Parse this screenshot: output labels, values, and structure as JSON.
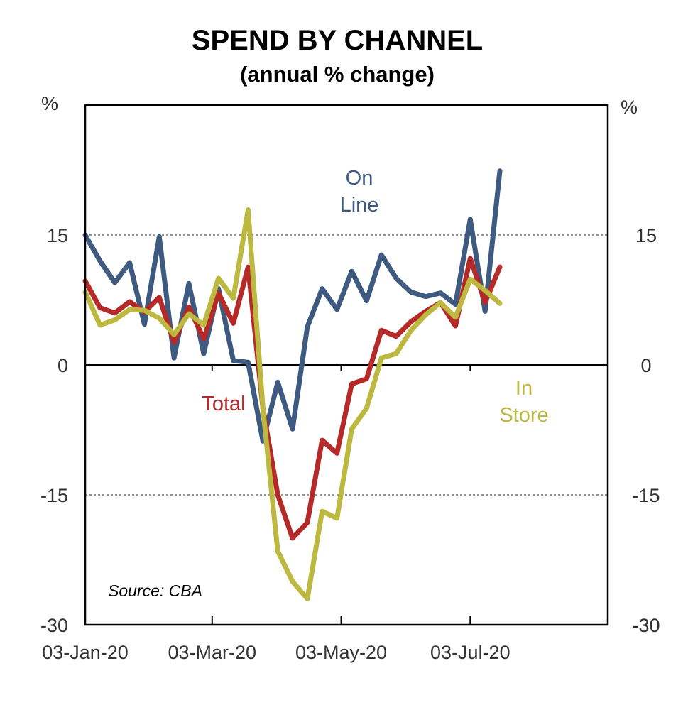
{
  "chart_data": {
    "type": "line",
    "title": "SPEND BY CHANNEL",
    "subtitle": "(annual % change)",
    "ylabel_left": "%",
    "ylabel_right": "%",
    "ylim": [
      -30,
      30
    ],
    "yticks": [
      15,
      0,
      -15,
      -30
    ],
    "ytick_labels": [
      "15",
      "0",
      "-15",
      "-30"
    ],
    "x_start": "03-Jan-20",
    "x_end": "06-Sep-20",
    "xticks": [
      "03-Jan-20",
      "03-Mar-20",
      "03-May-20",
      "03-Jul-20"
    ],
    "grid": "horizontal dotted at ±15",
    "source": "Source: CBA",
    "x": [
      "03-Jan-20",
      "10-Jan-20",
      "17-Jan-20",
      "24-Jan-20",
      "31-Jan-20",
      "07-Feb-20",
      "14-Feb-20",
      "21-Feb-20",
      "28-Feb-20",
      "06-Mar-20",
      "13-Mar-20",
      "20-Mar-20",
      "27-Mar-20",
      "03-Apr-20",
      "10-Apr-20",
      "17-Apr-20",
      "24-Apr-20",
      "01-May-20",
      "08-May-20",
      "15-May-20",
      "22-May-20",
      "29-May-20",
      "05-Jun-20",
      "12-Jun-20",
      "19-Jun-20",
      "26-Jun-20",
      "03-Jul-20",
      "10-Jul-20",
      "17-Jul-20"
    ],
    "series": [
      {
        "name": "On Line",
        "label_lines": [
          "On",
          "Line"
        ],
        "color": "#3e5a80",
        "values": [
          15,
          12,
          9.5,
          11.8,
          4.7,
          14.8,
          0.8,
          9.4,
          1.3,
          8.8,
          0.5,
          0.3,
          -8.8,
          -2,
          -7.4,
          4.4,
          8.8,
          6.4,
          10.8,
          7.4,
          12.7,
          10,
          8.4,
          7.9,
          8.3,
          7,
          16.8,
          6.2,
          22.4
        ]
      },
      {
        "name": "Total",
        "label_lines": [
          "Total"
        ],
        "color": "#b52a28",
        "values": [
          9.7,
          6.6,
          6,
          7.3,
          6.1,
          7.8,
          2.6,
          6.7,
          3,
          8.3,
          4.8,
          11.3,
          -5,
          -15,
          -20,
          -18.2,
          -8.7,
          -10.2,
          -2.2,
          -1.6,
          4,
          3.3,
          5,
          6.2,
          7.2,
          4.5,
          12.3,
          7.2,
          11.3
        ]
      },
      {
        "name": "In Store",
        "label_lines": [
          "In",
          "Store"
        ],
        "color": "#bdb83f",
        "values": [
          8.4,
          4.6,
          5.2,
          6.4,
          6.3,
          5.4,
          3.5,
          5.9,
          4.6,
          10,
          7.7,
          17.9,
          -5,
          -21.5,
          -25,
          -27,
          -16.9,
          -17.7,
          -7.4,
          -5,
          0.8,
          1.3,
          4,
          5.8,
          7.2,
          5.5,
          9.9,
          8.6,
          7.1
        ]
      }
    ]
  }
}
